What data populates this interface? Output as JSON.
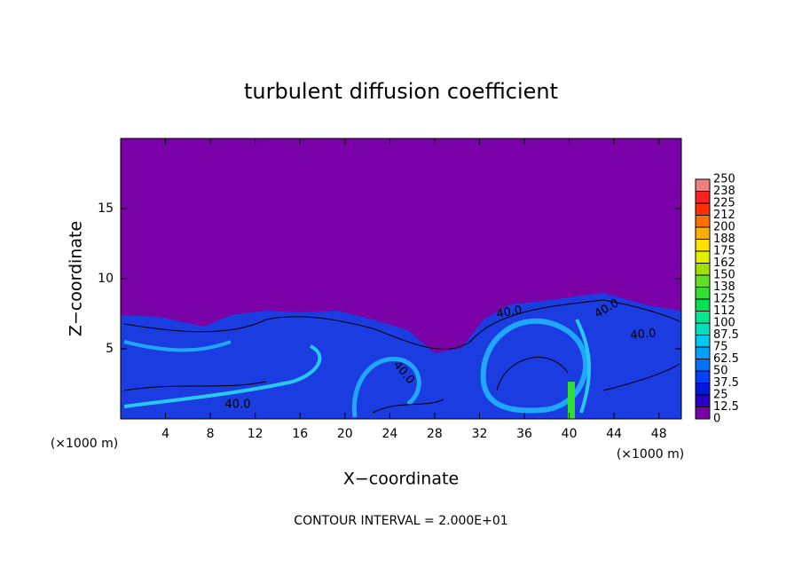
{
  "chart_data": {
    "type": "contour",
    "title": "turbulent diffusion coefficient",
    "xlabel": "X−coordinate",
    "ylabel": "Z−coordinate",
    "x_unit_labels": [
      "(×1000 m)",
      "(×1000 m)"
    ],
    "annotation": "CONTOUR INTERVAL = 2.000E+01",
    "contour_labels": [
      "40.0",
      "40.0",
      "40.0",
      "40.0",
      "40.0"
    ],
    "xlim": [
      0,
      50
    ],
    "xticks": [
      4,
      8,
      12,
      16,
      20,
      24,
      28,
      32,
      36,
      40,
      44,
      48
    ],
    "ylim": [
      0,
      20
    ],
    "yticks": [
      5,
      10,
      15
    ],
    "colorbar": {
      "lim": [
        0,
        250
      ],
      "ticks": [
        0,
        12.5,
        25,
        37.5,
        50,
        62.5,
        75,
        87.5,
        100,
        {
          "value": 112.5,
          "label": "112"
        },
        125,
        {
          "value": 137.5,
          "label": "138"
        },
        150,
        {
          "value": 162.5,
          "label": "162"
        },
        175,
        {
          "value": 187.5,
          "label": "188"
        },
        200,
        {
          "value": 212.5,
          "label": "212"
        },
        225,
        {
          "value": 237.5,
          "label": "238"
        },
        250
      ],
      "colors": [
        "#7a00a8",
        "#2c00c4",
        "#0018dc",
        "#0040ff",
        "#0070ff",
        "#00a0ff",
        "#00c8f0",
        "#00e0c0",
        "#00e890",
        "#00e050",
        "#30e030",
        "#60e020",
        "#a0e000",
        "#e0f000",
        "#ffe000",
        "#ffb000",
        "#ff7000",
        "#ff3000",
        "#ff2020",
        "#f08080"
      ]
    }
  }
}
